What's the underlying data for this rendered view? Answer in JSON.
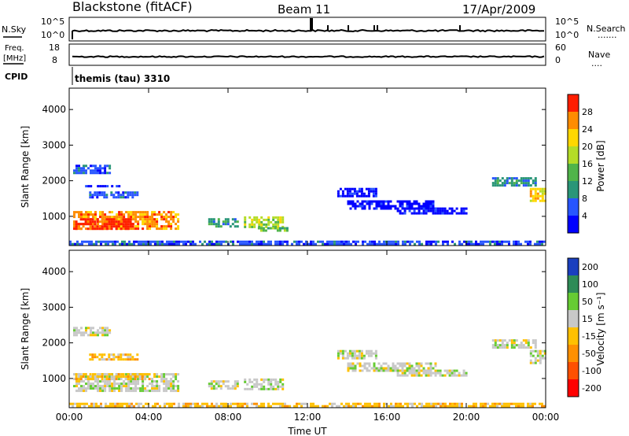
{
  "header": {
    "station": "Blackstone (fitACF)",
    "beam": "Beam 11",
    "date": "17/Apr/2009"
  },
  "panels": {
    "nsky": {
      "left_label": "N.Sky",
      "left_ticks": [
        "10^5",
        "10^0"
      ],
      "right_ticks": [
        "10^5",
        "10^0"
      ],
      "right_label": "N.Search",
      "right_dots": "......."
    },
    "freq": {
      "left_label": "Freq.",
      "left_unit": "[MHz]",
      "left_ticks": [
        "18",
        "8"
      ],
      "right_ticks": [
        "60",
        "0"
      ],
      "right_label": "Nave",
      "right_dots": "...."
    },
    "cpid": {
      "label": "CPID",
      "value": "themis (tau) 3310"
    }
  },
  "chart_data": [
    {
      "type": "heatmap",
      "name": "power",
      "ylabel": "Slant Range [km]",
      "xlabel": "",
      "xlim": [
        0,
        24
      ],
      "ylim": [
        180,
        4600
      ],
      "yticks": [
        "1000",
        "2000",
        "3000",
        "4000"
      ],
      "xticks": [
        "00:00",
        "04:00",
        "08:00",
        "12:00",
        "16:00",
        "20:00",
        "00:00"
      ],
      "colorbar": {
        "label": "Power [dB]",
        "ticks": [
          "4",
          "8",
          "12",
          "16",
          "20",
          "24",
          "28"
        ],
        "colors": [
          "#0000ff",
          "#2855ff",
          "#2a9678",
          "#50b44a",
          "#b4dc28",
          "#ffd700",
          "#ff8c00",
          "#ff1e00"
        ]
      },
      "regions": [
        {
          "t": [
            0.2,
            2.0
          ],
          "r": [
            2250,
            2450
          ],
          "level": 1
        },
        {
          "t": [
            1.0,
            3.4
          ],
          "r": [
            1550,
            1700
          ],
          "level": 1
        },
        {
          "t": [
            0.8,
            2.5
          ],
          "r": [
            1820,
            1880
          ],
          "level": 0
        },
        {
          "t": [
            0.2,
            5.5
          ],
          "r": [
            620,
            1150
          ],
          "level": 6
        },
        {
          "t": [
            0.3,
            3.2
          ],
          "r": [
            620,
            950
          ],
          "level": 7
        },
        {
          "t": [
            7.0,
            8.5
          ],
          "r": [
            750,
            950
          ],
          "level": 2
        },
        {
          "t": [
            8.8,
            10.8
          ],
          "r": [
            700,
            1000
          ],
          "level": 4
        },
        {
          "t": [
            9.5,
            11.0
          ],
          "r": [
            600,
            700
          ],
          "level": 3
        },
        {
          "t": [
            13.5,
            15.5
          ],
          "r": [
            1600,
            1800
          ],
          "level": 0
        },
        {
          "t": [
            14.0,
            18.5
          ],
          "r": [
            1250,
            1450
          ],
          "level": 0
        },
        {
          "t": [
            16.5,
            20.0
          ],
          "r": [
            1100,
            1250
          ],
          "level": 0
        },
        {
          "t": [
            21.3,
            23.5
          ],
          "r": [
            1900,
            2100
          ],
          "level": 2
        },
        {
          "t": [
            23.2,
            24.0
          ],
          "r": [
            1450,
            1800
          ],
          "level": 5
        },
        {
          "t": [
            0.0,
            24.0
          ],
          "r": [
            200,
            320
          ],
          "level": 1
        }
      ]
    },
    {
      "type": "heatmap",
      "name": "velocity",
      "ylabel": "Slant Range [km]",
      "xlabel": "Time UT",
      "xlim": [
        0,
        24
      ],
      "ylim": [
        180,
        4600
      ],
      "yticks": [
        "1000",
        "2000",
        "3000",
        "4000"
      ],
      "xticks": [
        "00:00",
        "04:00",
        "08:00",
        "12:00",
        "16:00",
        "20:00",
        "00:00"
      ],
      "colorbar": {
        "label": "Velocity [m s⁻¹]",
        "ticks": [
          "200",
          "100",
          "50",
          "15",
          "-15",
          "-50",
          "-100",
          "-200"
        ],
        "colors": [
          "#1a3fbf",
          "#2e8b57",
          "#66cc33",
          "#c8c8c8",
          "#ffc000",
          "#ff9000",
          "#ff5000",
          "#ff0000"
        ]
      },
      "regions": [
        {
          "t": [
            0.2,
            2.0
          ],
          "r": [
            2250,
            2450
          ],
          "level": 3
        },
        {
          "t": [
            1.0,
            3.4
          ],
          "r": [
            1550,
            1700
          ],
          "level": 4
        },
        {
          "t": [
            0.2,
            5.5
          ],
          "r": [
            620,
            1150
          ],
          "level": 3
        },
        {
          "t": [
            0.3,
            4.0
          ],
          "r": [
            1000,
            1150
          ],
          "level": 4
        },
        {
          "t": [
            7.0,
            8.5
          ],
          "r": [
            750,
            950
          ],
          "level": 3
        },
        {
          "t": [
            8.8,
            10.8
          ],
          "r": [
            700,
            1000
          ],
          "level": 3
        },
        {
          "t": [
            13.5,
            15.5
          ],
          "r": [
            1600,
            1800
          ],
          "level": 3
        },
        {
          "t": [
            14.0,
            18.5
          ],
          "r": [
            1250,
            1450
          ],
          "level": 3
        },
        {
          "t": [
            16.5,
            20.0
          ],
          "r": [
            1100,
            1250
          ],
          "level": 3
        },
        {
          "t": [
            21.3,
            23.5
          ],
          "r": [
            1900,
            2100
          ],
          "level": 3
        },
        {
          "t": [
            23.2,
            24.0
          ],
          "r": [
            1450,
            1800
          ],
          "level": 3
        },
        {
          "t": [
            0.0,
            24.0
          ],
          "r": [
            200,
            320
          ],
          "level": 4
        }
      ]
    }
  ]
}
